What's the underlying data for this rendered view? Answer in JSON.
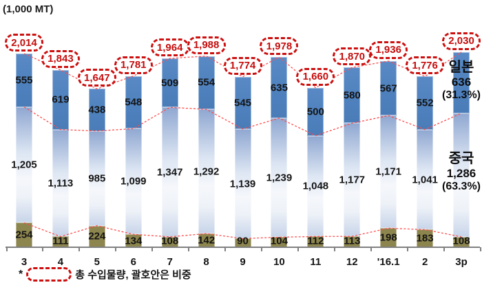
{
  "title": "(1,000 MT)",
  "colors": {
    "japan_bar": "#4E81BD",
    "china_bar_gradient_top": "#8FA7D1",
    "china_bar_gradient_bottom": "#C7D4E9",
    "other_bar": "#8C854E",
    "callout_red": "#CC0F0F",
    "trend_line_red": "#FF4D4D",
    "axis_gray": "#7F7F7F"
  },
  "right_labels": {
    "japan": {
      "name": "일본",
      "value": "636",
      "share": "(31.3%)"
    },
    "china": {
      "name": "중국",
      "value": "1,286",
      "share": "(63.3%)"
    }
  },
  "footnote": {
    "marker": "*",
    "text": "총 수입물량, 괄호안은 비중"
  },
  "chart_data": {
    "type": "bar",
    "stacked": true,
    "unit_label": "(1,000 MT)",
    "categories": [
      "3",
      "4",
      "5",
      "6",
      "7",
      "8",
      "9",
      "10",
      "11",
      "12",
      "'16.1",
      "2",
      "3p"
    ],
    "series": [
      {
        "name": "일본",
        "role": "top-blue",
        "values": [
          555,
          619,
          438,
          548,
          509,
          554,
          545,
          635,
          500,
          580,
          567,
          552,
          636
        ]
      },
      {
        "name": "중국",
        "role": "middle-gradient",
        "values": [
          1205,
          1113,
          985,
          1099,
          1347,
          1292,
          1139,
          1239,
          1048,
          1177,
          1171,
          1041,
          1286
        ]
      },
      {
        "name": "",
        "role": "bottom-olive",
        "values": [
          254,
          111,
          224,
          134,
          108,
          142,
          90,
          104,
          112,
          113,
          198,
          183,
          108
        ]
      }
    ],
    "totals": [
      2014,
      1843,
      1647,
      1781,
      1964,
      1988,
      1774,
      1978,
      1660,
      1870,
      1936,
      1776,
      2030
    ],
    "totals_shown_in_red_dashed_callouts": true,
    "value_axis_visible": false,
    "legend_position": "right-inline"
  }
}
